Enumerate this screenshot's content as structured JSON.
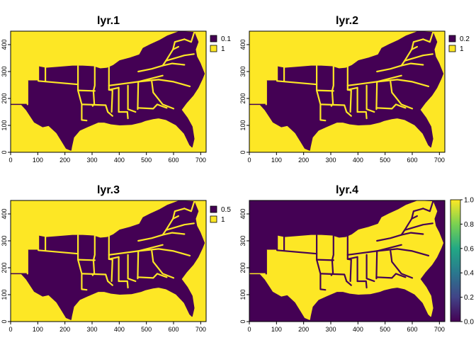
{
  "chart_data": [
    {
      "type": "heatmap",
      "title": "lyr.1",
      "xlim": [
        0,
        720
      ],
      "ylim": [
        0,
        450
      ],
      "xticks": [
        0,
        100,
        200,
        300,
        400,
        500,
        600,
        700
      ],
      "yticks": [
        0,
        100,
        200,
        300,
        400
      ],
      "colors": {
        "land": "#440154",
        "sea": "#FDE725"
      },
      "legend": {
        "kind": "categorical",
        "position": "right",
        "entries": [
          {
            "label": "0.1",
            "color": "#440154"
          },
          {
            "label": "1",
            "color": "#FDE725"
          }
        ]
      }
    },
    {
      "type": "heatmap",
      "title": "lyr.2",
      "xlim": [
        0,
        720
      ],
      "ylim": [
        0,
        450
      ],
      "xticks": [
        0,
        100,
        200,
        300,
        400,
        500,
        600,
        700
      ],
      "yticks": [
        0,
        100,
        200,
        300,
        400
      ],
      "colors": {
        "land": "#440154",
        "sea": "#FDE725"
      },
      "legend": {
        "kind": "categorical",
        "position": "right",
        "entries": [
          {
            "label": "0.2",
            "color": "#440154"
          },
          {
            "label": "1",
            "color": "#FDE725"
          }
        ]
      }
    },
    {
      "type": "heatmap",
      "title": "lyr.3",
      "xlim": [
        0,
        720
      ],
      "ylim": [
        0,
        450
      ],
      "xticks": [
        0,
        100,
        200,
        300,
        400,
        500,
        600,
        700
      ],
      "yticks": [
        0,
        100,
        200,
        300,
        400
      ],
      "colors": {
        "land": "#440154",
        "sea": "#FDE725"
      },
      "legend": {
        "kind": "categorical",
        "position": "right",
        "entries": [
          {
            "label": "0.5",
            "color": "#440154"
          },
          {
            "label": "1",
            "color": "#FDE725"
          }
        ]
      }
    },
    {
      "type": "heatmap",
      "title": "lyr.4",
      "xlim": [
        0,
        720
      ],
      "ylim": [
        0,
        450
      ],
      "xticks": [
        0,
        100,
        200,
        300,
        400,
        500,
        600,
        700
      ],
      "yticks": [
        0,
        100,
        200,
        300,
        400
      ],
      "colors": {
        "land": "#FDE725",
        "sea": "#440154"
      },
      "legend": {
        "kind": "continuous",
        "position": "right",
        "range": [
          0,
          1
        ],
        "ticks": [
          "0.0",
          "0.2",
          "0.4",
          "0.6",
          "0.8",
          "1.0"
        ],
        "colors": [
          "#440154",
          "#414487",
          "#2A788E",
          "#22A884",
          "#7AD151",
          "#FDE725"
        ]
      }
    }
  ]
}
